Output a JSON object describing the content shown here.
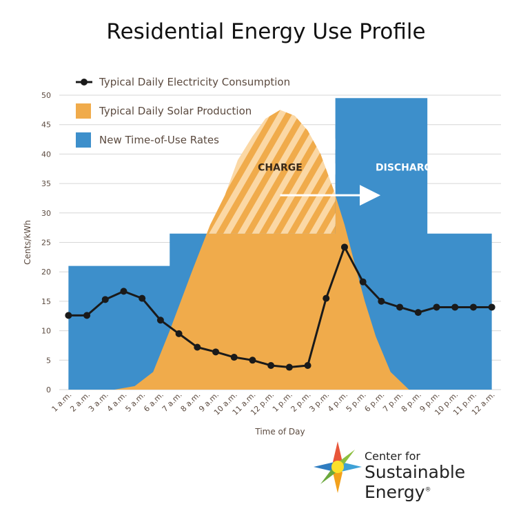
{
  "chart_data": {
    "type": "line",
    "title": "Residential Energy Use Profile",
    "xlabel": "Time of Day",
    "ylabel": "Cents/kWh",
    "ylim": [
      0,
      50
    ],
    "yticks": [
      0,
      5,
      10,
      15,
      20,
      25,
      30,
      35,
      40,
      45,
      50
    ],
    "grid": true,
    "legend_position": "top-left",
    "categories": [
      "1 a.m.",
      "2 a.m.",
      "3 a.m.",
      "4 a.m.",
      "5 a.m.",
      "6 a.m.",
      "7 a.m.",
      "8 a.m.",
      "9 a.m.",
      "10 a.m.",
      "11 a.m.",
      "12 p.m.",
      "1 p.m.",
      "2 p.m.",
      "3 p.m.",
      "4 p.m.",
      "5 p.m.",
      "6 p.m.",
      "7 p.m.",
      "8 p.m.",
      "9 p.m.",
      "10 p.m.",
      "11 p.m.",
      "12 a.m."
    ],
    "series": [
      {
        "name": "Typical Daily Electricity Consumption",
        "kind": "line",
        "color": "#1a1a1a",
        "values": [
          12.6,
          12.6,
          15.3,
          16.7,
          15.5,
          11.8,
          9.5,
          7.2,
          6.4,
          5.5,
          5.0,
          4.1,
          3.8,
          4.1,
          15.5,
          24.2,
          18.3,
          15.0,
          14.0,
          13.1,
          14.0,
          14.0,
          14.0,
          14.0
        ]
      },
      {
        "name": "Typical Daily Solar Production",
        "kind": "area",
        "color": "#f0ab4b",
        "x": [
          1,
          3.5,
          4.6,
          5.6,
          6.5,
          7.7,
          8.7,
          9.5,
          10.2,
          11,
          11.7,
          12.5,
          13.3,
          14,
          14.7,
          15.4,
          16,
          16.5,
          17.1,
          17.7,
          18.5,
          19.5,
          20.2,
          24
        ],
        "values": [
          0,
          0,
          0.6,
          3,
          10,
          20,
          28,
          33,
          39,
          43,
          46,
          47.5,
          46.5,
          44,
          40,
          34,
          28,
          22,
          15,
          9,
          3,
          0,
          0,
          0
        ]
      },
      {
        "name": "New Time-of-Use Rates",
        "kind": "step",
        "color": "#3d8fcb",
        "x": [
          1,
          6.5,
          6.5,
          15.5,
          15.5,
          20.5,
          20.5,
          24
        ],
        "values": [
          21,
          21,
          26.5,
          26.5,
          49.5,
          49.5,
          26.5,
          26.5
        ]
      }
    ],
    "annotations": [
      {
        "text": "CHARGE",
        "color": "#3a2a1a"
      },
      {
        "text": "DISCHARGE",
        "color": "#ffffff"
      }
    ]
  },
  "logo": {
    "line1": "Center for",
    "line2": "Sustainable Energy",
    "mark": "®"
  }
}
